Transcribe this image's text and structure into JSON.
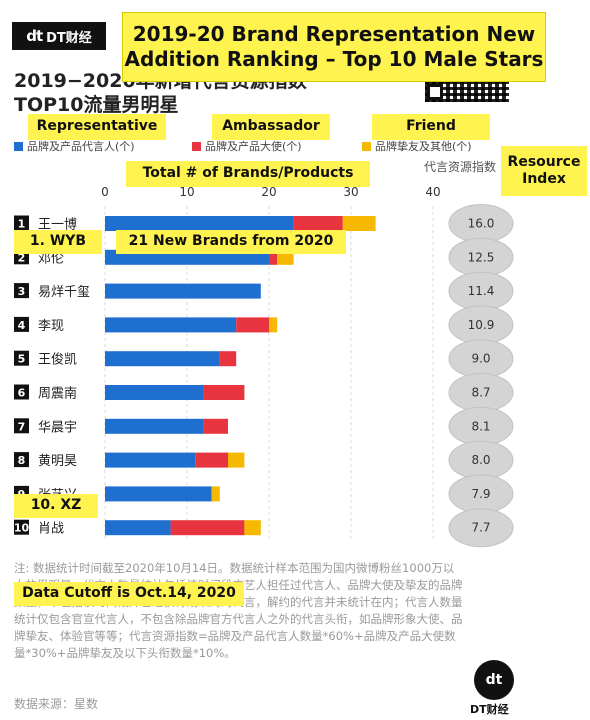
{
  "header": {
    "logo_mark": "dt",
    "logo_text": "DT财经",
    "title_cn_line1": "2019−2020年新增代言资源指数",
    "title_cn_line2": "TOP10流量男明星",
    "overlay_title": "2019-20 Brand Representation New Addition Ranking – Top 10 Male Stars"
  },
  "legend": {
    "items": [
      {
        "label": "品牌及产品代言人(个)",
        "color": "#1f6fd1",
        "overlay": "Representative"
      },
      {
        "label": "品牌及产品大使(个)",
        "color": "#e8343f",
        "overlay": "Ambassador"
      },
      {
        "label": "品牌挚友及其他(个)",
        "color": "#f7b801",
        "overlay": "Friend"
      }
    ]
  },
  "axis": {
    "overlay_label": "Total # of Brands/Products",
    "resource_header": "代言资源指数",
    "resource_overlay": "Resource Index"
  },
  "annotations": {
    "wyb": "1. WYB",
    "new_brands": "21 New Brands from 2020",
    "xz": "10. XZ",
    "cutoff": "Data Cutoff is Oct.14, 2020"
  },
  "chart_data": {
    "type": "bar",
    "orientation": "horizontal",
    "stacked": true,
    "xlim": [
      0,
      40
    ],
    "ticks": [
      0,
      10,
      20,
      30,
      40
    ],
    "grid": true,
    "categories": [
      "王一博",
      "邓伦",
      "易烊千玺",
      "李现",
      "王俊凯",
      "周震南",
      "华晨宇",
      "黄明昊",
      "张艺兴",
      "肖战"
    ],
    "ranks": [
      "1",
      "2",
      "3",
      "4",
      "5",
      "6",
      "7",
      "8",
      "9",
      "10"
    ],
    "series": [
      {
        "name": "品牌及产品代言人(个)",
        "color": "#1f6fd1",
        "values": [
          23,
          20,
          19,
          16,
          14,
          12,
          12,
          11,
          13,
          8
        ]
      },
      {
        "name": "品牌及产品大使(个)",
        "color": "#e8343f",
        "values": [
          6,
          1,
          0,
          4,
          2,
          5,
          3,
          4,
          0,
          9
        ]
      },
      {
        "name": "品牌挚友及其他(个)",
        "color": "#f7b801",
        "values": [
          4,
          2,
          0,
          1,
          0,
          0,
          0,
          2,
          1,
          2
        ]
      }
    ],
    "resource_index": [
      "16.0",
      "12.5",
      "11.4",
      "10.9",
      "9.0",
      "8.7",
      "8.1",
      "8.0",
      "7.9",
      "7.7"
    ]
  },
  "footer": {
    "note": "注: 数据统计时间截至2020年10月14日。数据统计样本范围为国内微博粉丝1000万以上的男明星。代言人数量统计包括该时间段内艺人担任过代言人、品牌大使及挚友的品牌数量，不包括该时间段外已经获得或续约的代言，解约的代言并未统计在内；代言人数量统计仅包含官宣代言人，不包含除品牌官方代言人之外的代言头衔，如品牌形象大使、品牌挚友、体验官等等；代言资源指数=品牌及产品代言人数量*60%+品牌及产品大使数量*30%+品牌挚友及以下头衔数量*10%。",
    "source": "数据来源：星数",
    "logo_mark": "dt",
    "logo_caption": "DT财经"
  }
}
